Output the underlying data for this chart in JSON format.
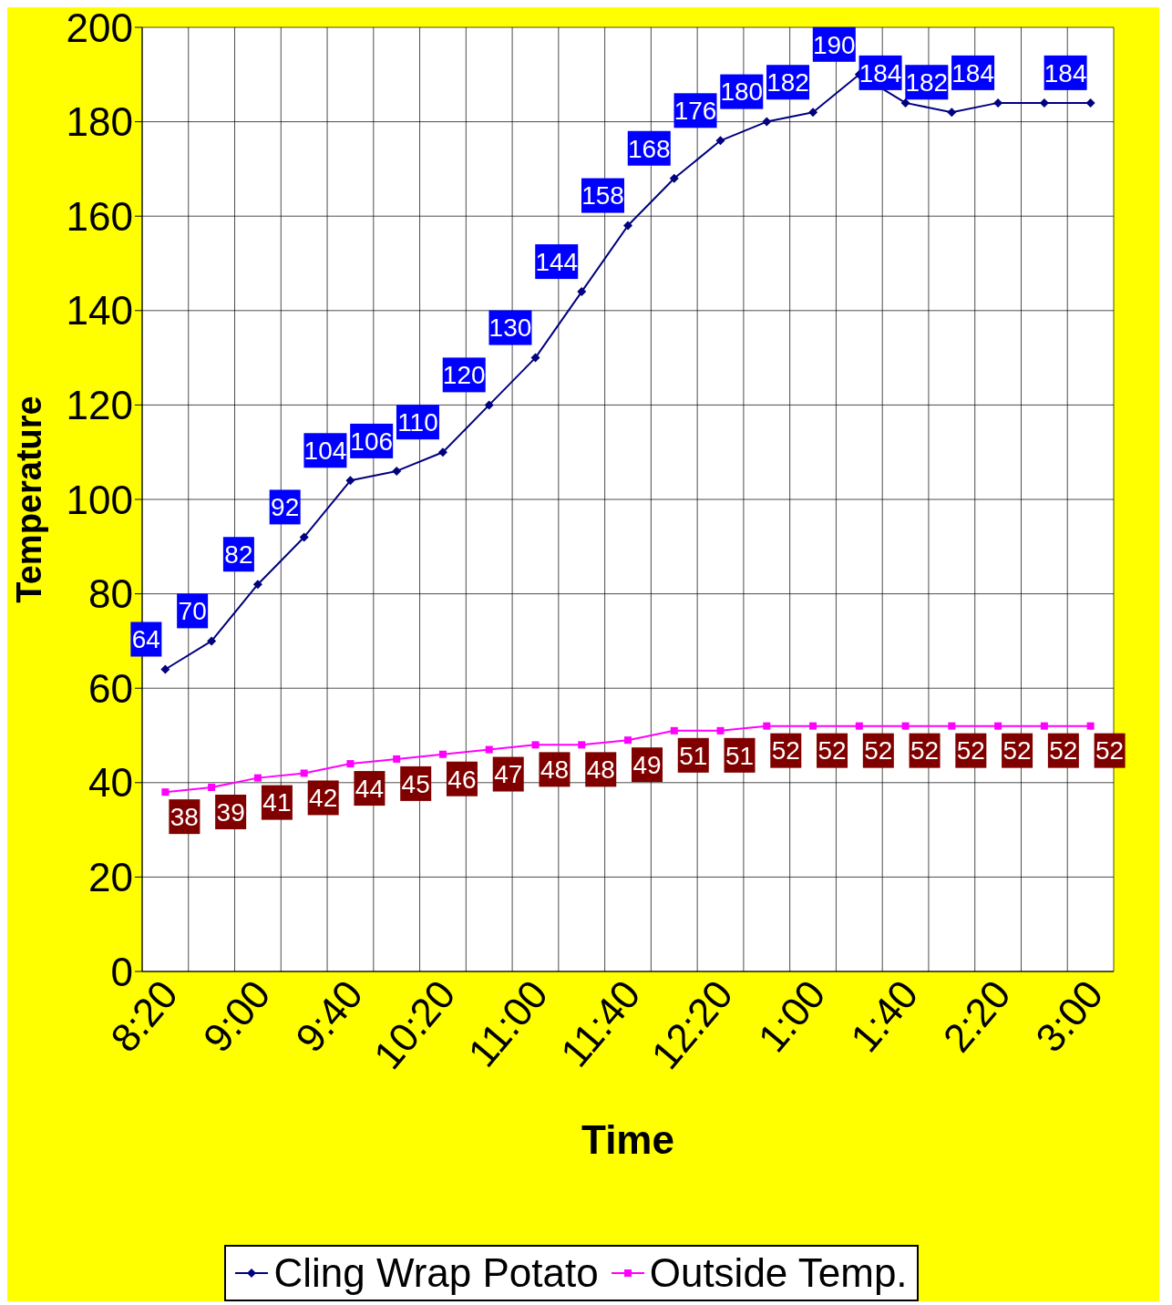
{
  "chart_data": {
    "type": "line",
    "xlabel": "Time",
    "ylabel": "Temperature",
    "categories": [
      "8:20",
      null,
      "9:00",
      null,
      "9:40",
      null,
      "10:20",
      null,
      "11:00",
      null,
      "11:40",
      null,
      "12:20",
      null,
      "1:00",
      null,
      "1:40",
      null,
      "2:20",
      null,
      "3:00"
    ],
    "series": [
      {
        "name": "Cling Wrap Potato",
        "color": "#000080",
        "marker": "diamond",
        "values": [
          64,
          70,
          82,
          92,
          104,
          106,
          110,
          120,
          130,
          144,
          158,
          168,
          176,
          180,
          182,
          190,
          184,
          182,
          184,
          184,
          184
        ],
        "value_labels": [
          "64",
          "70",
          "82",
          "92",
          "104",
          "106",
          "110",
          "120",
          "130",
          "144",
          "158",
          "168",
          "176",
          "180",
          "182",
          "190",
          "184",
          "182",
          "184",
          null,
          "184"
        ]
      },
      {
        "name": "Outside Temp.",
        "color": "#ff00ff",
        "marker": "square",
        "values": [
          38,
          39,
          41,
          42,
          44,
          45,
          46,
          47,
          48,
          48,
          49,
          51,
          51,
          52,
          52,
          52,
          52,
          52,
          52,
          52,
          52
        ],
        "data_labels": true
      }
    ],
    "ylim": [
      0,
      200
    ],
    "yticks": [
      0,
      20,
      40,
      60,
      80,
      100,
      120,
      140,
      160,
      180,
      200
    ],
    "grid": true,
    "legend": "bottom"
  }
}
